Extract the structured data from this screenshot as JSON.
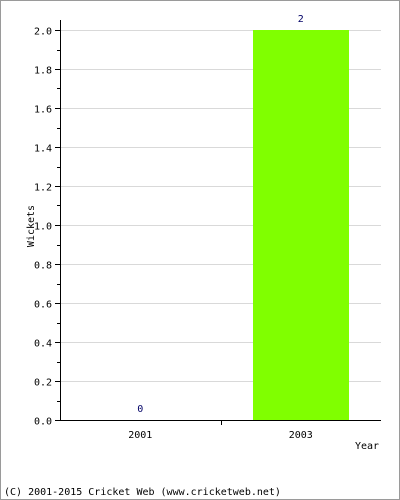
{
  "chart_data": {
    "type": "bar",
    "title": "",
    "xlabel": "Year",
    "ylabel": "Wickets",
    "categories": [
      "2001",
      "2003"
    ],
    "values": [
      0,
      2
    ],
    "data_labels": [
      "0",
      "2"
    ],
    "ylim": [
      0,
      2
    ],
    "yticks": [
      "0.0",
      "0.2",
      "0.4",
      "0.6",
      "0.8",
      "1.0",
      "1.2",
      "1.4",
      "1.6",
      "1.8",
      "2.0"
    ],
    "grid": true,
    "bar_color": "#80ff00",
    "label_color": "#000066"
  },
  "footer": {
    "copyright": "(C) 2001-2015 Cricket Web (www.cricketweb.net)"
  }
}
